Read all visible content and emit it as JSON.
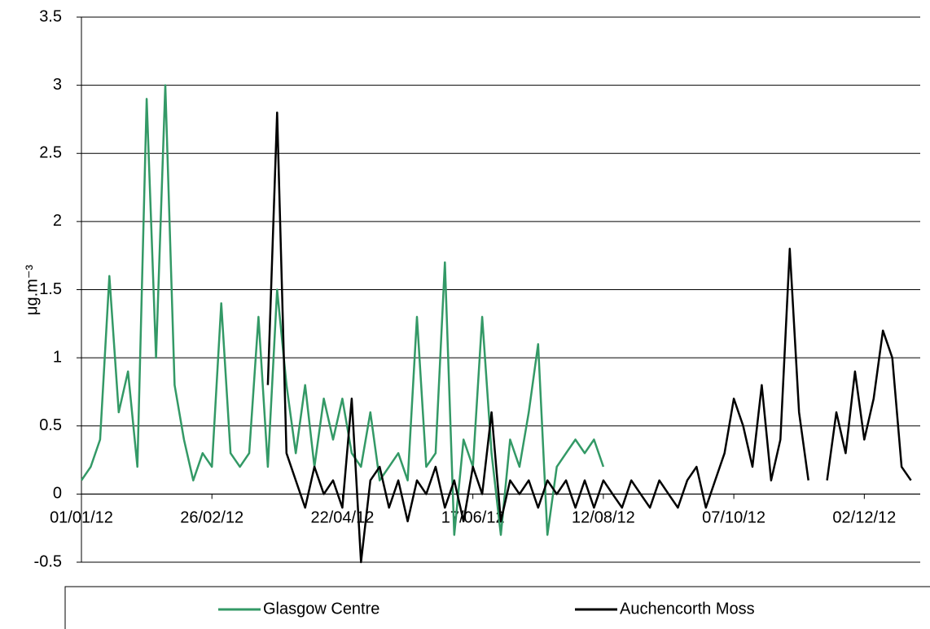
{
  "chart_data": {
    "type": "line",
    "y_label": "μg.m⁻³",
    "x": [
      "01/01/12",
      "05/01/12",
      "09/01/12",
      "13/01/12",
      "17/01/12",
      "21/01/12",
      "25/01/12",
      "29/01/12",
      "02/02/12",
      "06/02/12",
      "10/02/12",
      "14/02/12",
      "18/02/12",
      "22/02/12",
      "26/02/12",
      "01/03/12",
      "05/03/12",
      "09/03/12",
      "13/03/12",
      "17/03/12",
      "21/03/12",
      "25/03/12",
      "29/03/12",
      "02/04/12",
      "06/04/12",
      "10/04/12",
      "14/04/12",
      "18/04/12",
      "22/04/12",
      "26/04/12",
      "30/04/12",
      "04/05/12",
      "08/05/12",
      "12/05/12",
      "16/05/12",
      "20/05/12",
      "24/05/12",
      "28/05/12",
      "01/06/12",
      "05/06/12",
      "09/06/12",
      "13/06/12",
      "17/06/12",
      "21/06/12",
      "25/06/12",
      "29/06/12",
      "03/07/12",
      "07/07/12",
      "11/07/12",
      "15/07/12",
      "19/07/12",
      "23/07/12",
      "27/07/12",
      "31/07/12",
      "04/08/12",
      "08/08/12",
      "12/08/12",
      "16/08/12",
      "20/08/12",
      "24/08/12",
      "28/08/12",
      "01/09/12",
      "05/09/12",
      "09/09/12",
      "13/09/12",
      "17/09/12",
      "21/09/12",
      "25/09/12",
      "29/09/12",
      "03/10/12",
      "07/10/12",
      "11/10/12",
      "15/10/12",
      "19/10/12",
      "23/10/12",
      "27/10/12",
      "31/10/12",
      "04/11/12",
      "08/11/12",
      "12/11/12",
      "16/11/12",
      "20/11/12",
      "24/11/12",
      "28/11/12",
      "02/12/12",
      "06/12/12",
      "10/12/12",
      "14/12/12",
      "18/12/12",
      "22/12/12"
    ],
    "series": [
      {
        "name": "Glasgow Centre",
        "color": "#339966",
        "values": [
          0.1,
          0.2,
          0.4,
          1.6,
          0.6,
          0.9,
          0.2,
          2.9,
          1.0,
          3.0,
          0.8,
          0.4,
          0.1,
          0.3,
          0.2,
          1.4,
          0.3,
          0.2,
          0.3,
          1.3,
          0.2,
          1.5,
          0.8,
          0.3,
          0.8,
          0.2,
          0.7,
          0.4,
          0.7,
          0.3,
          0.2,
          0.6,
          0.1,
          0.2,
          0.3,
          0.1,
          1.3,
          0.2,
          0.3,
          1.7,
          -0.3,
          0.4,
          0.2,
          1.3,
          0.3,
          -0.3,
          0.4,
          0.2,
          0.6,
          1.1,
          -0.3,
          0.2,
          0.3,
          0.4,
          0.3,
          0.4,
          0.2,
          null,
          null,
          null,
          null,
          null,
          null,
          null,
          null,
          null,
          null,
          null,
          null,
          null,
          null,
          null,
          null,
          null,
          null,
          null,
          null,
          null,
          null,
          null,
          null,
          null,
          null,
          null,
          null,
          null,
          null,
          null,
          null,
          null
        ]
      },
      {
        "name": "Auchencorth Moss",
        "color": "#000000",
        "values": [
          null,
          null,
          null,
          null,
          null,
          null,
          null,
          null,
          null,
          null,
          null,
          null,
          null,
          null,
          null,
          null,
          null,
          null,
          null,
          null,
          0.8,
          2.8,
          0.3,
          0.1,
          -0.1,
          0.2,
          0.0,
          0.1,
          -0.1,
          0.7,
          -0.5,
          0.1,
          0.2,
          -0.1,
          0.1,
          -0.2,
          0.1,
          0.0,
          0.2,
          -0.1,
          0.1,
          -0.2,
          0.2,
          0.0,
          0.6,
          -0.2,
          0.1,
          0.0,
          0.1,
          -0.1,
          0.1,
          0.0,
          0.1,
          -0.1,
          0.1,
          -0.1,
          0.1,
          0.0,
          -0.1,
          0.1,
          0.0,
          -0.1,
          0.1,
          0.0,
          -0.1,
          0.1,
          0.2,
          -0.1,
          0.1,
          0.3,
          0.7,
          0.5,
          0.2,
          0.8,
          0.1,
          0.4,
          1.8,
          0.6,
          0.1,
          null,
          0.1,
          0.6,
          0.3,
          0.9,
          0.4,
          0.7,
          1.2,
          1.0,
          0.2,
          0.1
        ]
      }
    ],
    "xlim": [
      "01/01/12",
      "26/12/12"
    ],
    "xticks": [
      "01/01/12",
      "26/02/12",
      "22/04/12",
      "17/06/12",
      "12/08/12",
      "07/10/12",
      "02/12/12"
    ],
    "ylim": [
      -0.5,
      3.5
    ],
    "yticks": [
      -0.5,
      0,
      0.5,
      1,
      1.5,
      2,
      2.5,
      3,
      3.5
    ],
    "grid": true,
    "legend": "bottom"
  }
}
